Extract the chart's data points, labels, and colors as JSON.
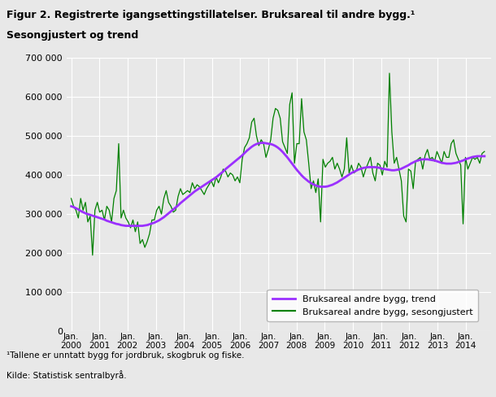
{
  "title_line1": "Figur 2. Registrerte igangsettingstillatelser. Bruksareal til andre bygg.¹",
  "title_line2": "Sesongjustert og trend",
  "ylim": [
    0,
    700000
  ],
  "yticks": [
    0,
    100000,
    200000,
    300000,
    400000,
    500000,
    600000,
    700000
  ],
  "ytick_labels": [
    "0",
    "100 000",
    "200 000",
    "300 000",
    "400 000",
    "500 000",
    "600 000",
    "700 000"
  ],
  "footnote1": "¹Tallene er unntatt bygg for jordbruk, skogbruk og fiske.",
  "footnote2": "Kilde: Statistisk sentralbyrå.",
  "legend_entries": [
    "Bruksareal andre bygg, trend",
    "Bruksareal andre bygg, sesongjustert"
  ],
  "trend_color": "#9B30FF",
  "seasonal_color": "#008000",
  "bg_color": "#e8e8e8",
  "plot_bg_color": "#e8e8e8",
  "grid_color": "#ffffff",
  "x_start_year": 2000,
  "x_end_year": 2014.9,
  "xtick_years": [
    2000,
    2001,
    2002,
    2003,
    2004,
    2005,
    2006,
    2007,
    2008,
    2009,
    2010,
    2011,
    2012,
    2013,
    2014
  ],
  "seasonal_data": [
    340000,
    320000,
    310000,
    290000,
    340000,
    310000,
    330000,
    280000,
    295000,
    195000,
    310000,
    330000,
    305000,
    310000,
    285000,
    320000,
    310000,
    280000,
    340000,
    360000,
    480000,
    290000,
    310000,
    290000,
    280000,
    265000,
    285000,
    255000,
    280000,
    225000,
    235000,
    215000,
    230000,
    250000,
    285000,
    285000,
    310000,
    320000,
    300000,
    340000,
    360000,
    330000,
    320000,
    305000,
    310000,
    345000,
    365000,
    350000,
    355000,
    360000,
    355000,
    380000,
    365000,
    375000,
    370000,
    360000,
    350000,
    365000,
    375000,
    385000,
    370000,
    395000,
    380000,
    395000,
    415000,
    410000,
    395000,
    405000,
    400000,
    385000,
    395000,
    380000,
    440000,
    470000,
    480000,
    495000,
    535000,
    545000,
    500000,
    475000,
    490000,
    480000,
    445000,
    465000,
    490000,
    545000,
    570000,
    565000,
    545000,
    485000,
    470000,
    455000,
    580000,
    610000,
    430000,
    480000,
    480000,
    595000,
    510000,
    490000,
    430000,
    365000,
    385000,
    355000,
    390000,
    280000,
    440000,
    420000,
    430000,
    435000,
    445000,
    415000,
    430000,
    415000,
    395000,
    415000,
    495000,
    405000,
    425000,
    405000,
    410000,
    430000,
    420000,
    395000,
    415000,
    430000,
    445000,
    405000,
    385000,
    430000,
    425000,
    400000,
    435000,
    420000,
    660000,
    510000,
    430000,
    445000,
    415000,
    385000,
    295000,
    280000,
    415000,
    410000,
    365000,
    435000,
    440000,
    445000,
    415000,
    450000,
    465000,
    440000,
    445000,
    435000,
    460000,
    445000,
    430000,
    460000,
    445000,
    445000,
    480000,
    490000,
    455000,
    440000,
    425000,
    275000,
    445000,
    415000,
    430000,
    445000,
    440000,
    445000,
    430000,
    455000,
    460000
  ],
  "trend_data": [
    320000,
    318000,
    315000,
    312000,
    308000,
    305000,
    302000,
    300000,
    298000,
    296000,
    294000,
    292000,
    290000,
    288000,
    286000,
    283000,
    281000,
    279000,
    277000,
    275000,
    274000,
    272000,
    271000,
    270000,
    270000,
    270000,
    270000,
    270000,
    270000,
    270000,
    270000,
    271000,
    272000,
    274000,
    276000,
    278000,
    281000,
    284000,
    288000,
    292000,
    297000,
    302000,
    307000,
    312000,
    317000,
    322000,
    328000,
    333000,
    338000,
    343000,
    348000,
    353000,
    358000,
    362000,
    366000,
    370000,
    374000,
    378000,
    382000,
    386000,
    390000,
    394000,
    399000,
    404000,
    409000,
    415000,
    420000,
    425000,
    430000,
    435000,
    440000,
    445000,
    450000,
    456000,
    462000,
    467000,
    472000,
    476000,
    479000,
    481000,
    482000,
    482000,
    481000,
    480000,
    479000,
    477000,
    474000,
    470000,
    465000,
    459000,
    452000,
    445000,
    437000,
    429000,
    421000,
    413000,
    406000,
    399000,
    393000,
    388000,
    383000,
    379000,
    376000,
    373000,
    371000,
    370000,
    370000,
    370000,
    371000,
    373000,
    375000,
    378000,
    381000,
    385000,
    389000,
    393000,
    397000,
    401000,
    405000,
    408000,
    411000,
    414000,
    416000,
    418000,
    419000,
    420000,
    420000,
    420000,
    420000,
    419000,
    418000,
    416000,
    415000,
    414000,
    413000,
    412000,
    412000,
    413000,
    414000,
    416000,
    419000,
    422000,
    425000,
    429000,
    432000,
    435000,
    437000,
    439000,
    440000,
    440000,
    440000,
    439000,
    438000,
    437000,
    435000,
    433000,
    431000,
    430000,
    429000,
    429000,
    429000,
    430000,
    431000,
    433000,
    435000,
    437000,
    440000,
    442000,
    444000,
    446000,
    447000,
    448000,
    448000,
    448000,
    448000
  ]
}
